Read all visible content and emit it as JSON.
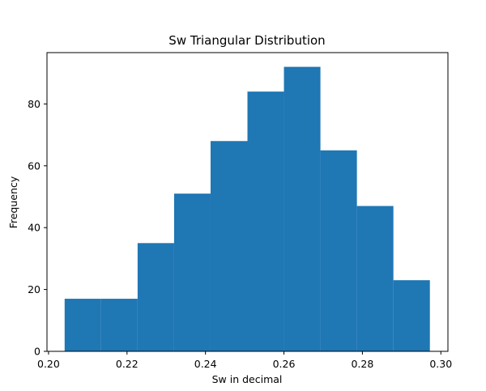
{
  "chart_data": {
    "type": "bar",
    "title": "Sw Triangular Distribution",
    "xlabel": "Sw in decimal",
    "ylabel": "Frequency",
    "bin_edges": [
      0.2041,
      0.2134,
      0.2227,
      0.232,
      0.2413,
      0.2507,
      0.26,
      0.2693,
      0.2786,
      0.2879,
      0.2972
    ],
    "values": [
      17,
      17,
      35,
      51,
      68,
      84,
      92,
      65,
      47,
      23
    ],
    "xlim": [
      0.1996,
      0.3018
    ],
    "ylim": [
      0,
      96.6
    ],
    "xticks": [
      0.2,
      0.22,
      0.24,
      0.26,
      0.28,
      0.3
    ],
    "xtick_labels": [
      "0.20",
      "0.22",
      "0.24",
      "0.26",
      "0.28",
      "0.30"
    ],
    "yticks": [
      0,
      20,
      40,
      60,
      80
    ],
    "ytick_labels": [
      "0",
      "20",
      "40",
      "60",
      "80"
    ],
    "grid": false,
    "bar_color": "#1f77b4"
  }
}
